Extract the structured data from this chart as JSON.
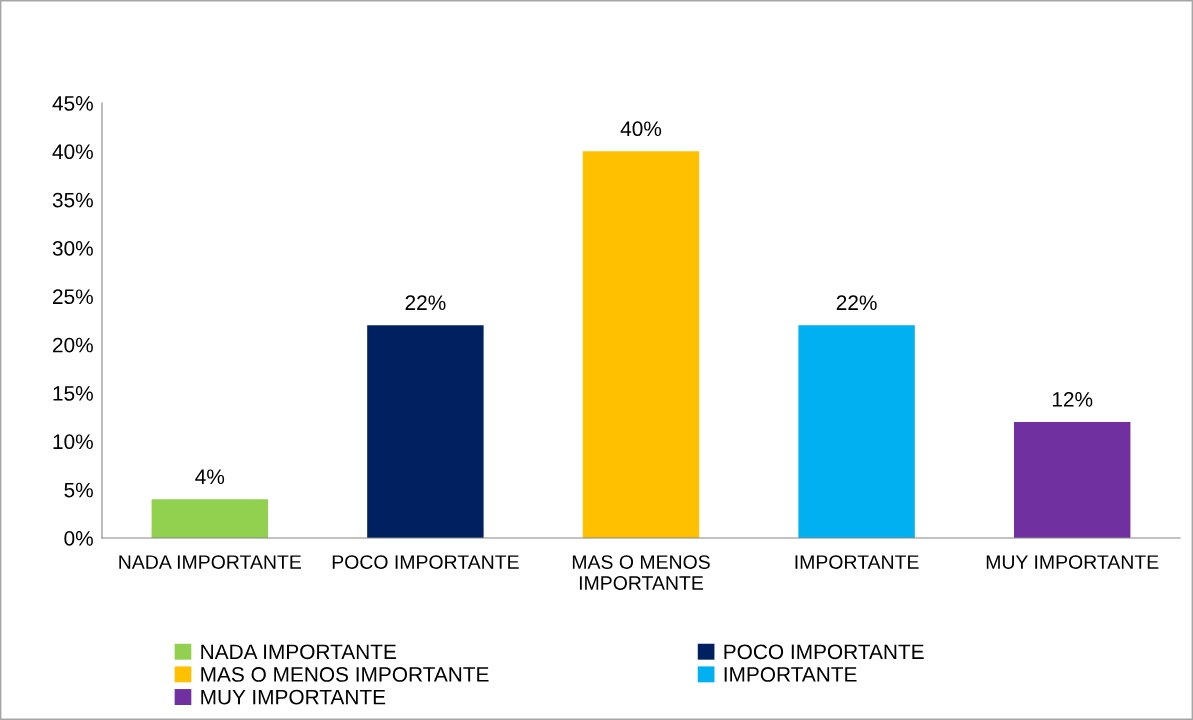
{
  "chart_data": {
    "type": "bar",
    "categories": [
      "NADA IMPORTANTE",
      "POCO IMPORTANTE",
      "MAS O MENOS IMPORTANTE",
      "IMPORTANTE",
      "MUY IMPORTANTE"
    ],
    "series": [
      {
        "name": "NADA IMPORTANTE",
        "color": "#92d050",
        "values": [
          4,
          null,
          null,
          null,
          null
        ],
        "value_labels": [
          "4%",
          null,
          null,
          null,
          null
        ]
      },
      {
        "name": "POCO IMPORTANTE",
        "color": "#002060",
        "values": [
          null,
          22,
          null,
          null,
          null
        ],
        "value_labels": [
          null,
          "22%",
          null,
          null,
          null
        ]
      },
      {
        "name": "MAS O MENOS IMPORTANTE",
        "color": "#ffc000",
        "values": [
          null,
          null,
          40,
          null,
          null
        ],
        "value_labels": [
          null,
          null,
          "40%",
          null,
          null
        ]
      },
      {
        "name": "IMPORTANTE",
        "color": "#00b0f0",
        "values": [
          null,
          null,
          null,
          22,
          null
        ],
        "value_labels": [
          null,
          null,
          null,
          "22%",
          null
        ]
      },
      {
        "name": "MUY IMPORTANTE",
        "color": "#7030a0",
        "values": [
          null,
          null,
          null,
          null,
          12
        ],
        "value_labels": [
          null,
          null,
          null,
          null,
          "12%"
        ]
      }
    ],
    "ylim": [
      0,
      45
    ],
    "yticks": [
      {
        "value": 0,
        "label": "0%"
      },
      {
        "value": 5,
        "label": "5%"
      },
      {
        "value": 10,
        "label": "10%"
      },
      {
        "value": 15,
        "label": "15%"
      },
      {
        "value": 20,
        "label": "20%"
      },
      {
        "value": 25,
        "label": "25%"
      },
      {
        "value": 30,
        "label": "30%"
      },
      {
        "value": 35,
        "label": "35%"
      },
      {
        "value": 40,
        "label": "40%"
      },
      {
        "value": 45,
        "label": "45%"
      }
    ],
    "grid": false,
    "legend": "bottom"
  }
}
